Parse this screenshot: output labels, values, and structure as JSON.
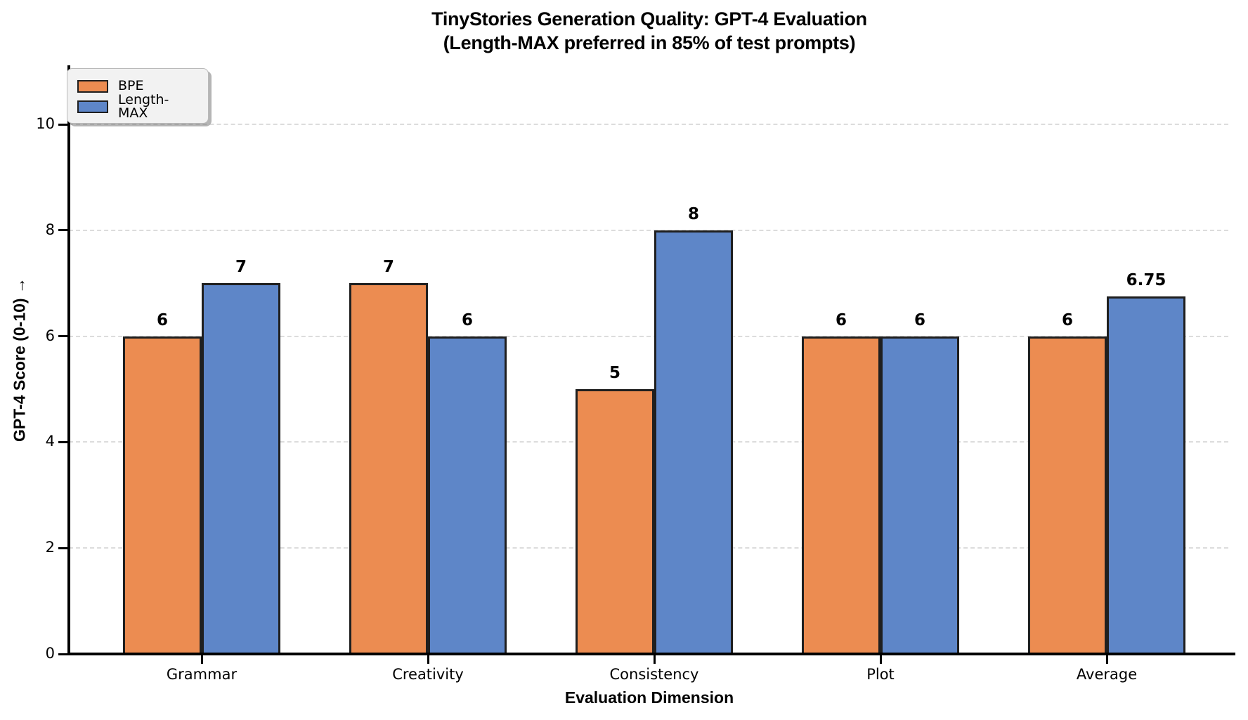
{
  "chart_data": {
    "type": "bar",
    "title": "TinyStories Generation Quality: GPT-4 Evaluation",
    "subtitle": "(Length-MAX preferred in 85% of test prompts)",
    "xlabel": "Evaluation Dimension",
    "ylabel": "GPT-4 Score (0-10) →",
    "categories": [
      "Grammar",
      "Creativity",
      "Consistency",
      "Plot",
      "Average"
    ],
    "series": [
      {
        "name": "BPE",
        "color": "#EC8C51",
        "values": [
          6,
          7,
          5,
          6,
          6
        ]
      },
      {
        "name": "Length-MAX",
        "color": "#5E86C8",
        "values": [
          7,
          6,
          8,
          6,
          6.75
        ]
      }
    ],
    "bar_edge_color": "#1f1f1f",
    "yticks": [
      0,
      2,
      4,
      6,
      8,
      10
    ],
    "ylim": [
      0,
      11.1
    ],
    "grid": "horizontal-dashed",
    "gridline_color": "#dcdcdc",
    "legend_position": "upper-left",
    "background_color": "#ffffff"
  }
}
